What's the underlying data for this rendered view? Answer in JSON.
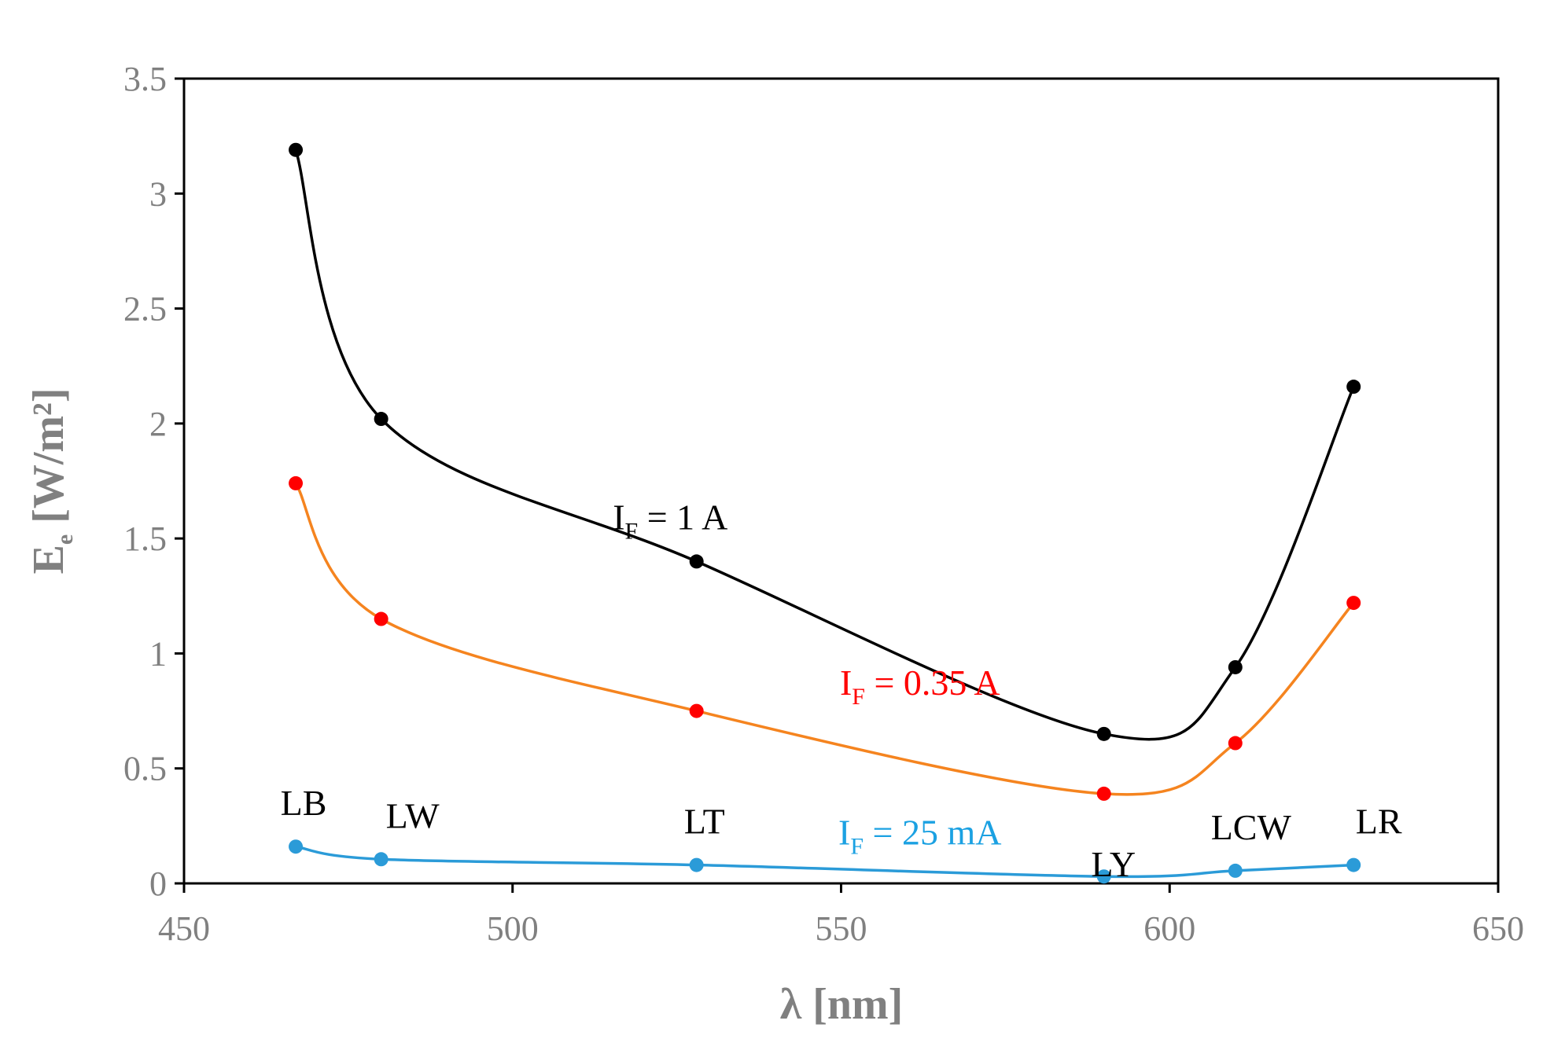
{
  "chart_data": {
    "type": "scatter",
    "title": "",
    "xlabel": "λ [nm]",
    "ylabel_main": "E",
    "ylabel_sub": "e",
    "ylabel_rest": " [W/m²]",
    "xlim": [
      450,
      650
    ],
    "ylim": [
      0,
      3.5
    ],
    "x_ticks": [
      450,
      500,
      550,
      600,
      650
    ],
    "y_ticks": [
      0,
      0.5,
      1,
      1.5,
      2,
      2.5,
      3,
      3.5
    ],
    "x_tick_labels": [
      "450",
      "500",
      "550",
      "600",
      "650"
    ],
    "y_tick_labels": [
      "0",
      "0.5",
      "1",
      "1.5",
      "2",
      "2.5",
      "3",
      "3.5"
    ],
    "grid": false,
    "x": [
      467,
      480,
      528,
      590,
      610,
      628
    ],
    "point_labels": [
      {
        "text": "LB",
        "x": 467
      },
      {
        "text": "LW",
        "x": 480
      },
      {
        "text": "LT",
        "x": 528
      },
      {
        "text": "LY",
        "x": 590
      },
      {
        "text": "LCW",
        "x": 610
      },
      {
        "text": "LR",
        "x": 628
      }
    ],
    "series": [
      {
        "name": "IF = 1 A",
        "label_main": "I",
        "label_sub": "F",
        "label_rest": " = 1 A",
        "label_anchor_x": 524,
        "label_anchor_y": 1.54,
        "label_color": "#000000",
        "marker_color": "#000000",
        "line_color": "#000000",
        "values": [
          3.19,
          2.02,
          1.4,
          0.65,
          0.94,
          2.16
        ]
      },
      {
        "name": "IF = 0.35 A",
        "label_main": "I",
        "label_sub": "F",
        "label_rest": " = 0.35 A",
        "label_anchor_x": 562,
        "label_anchor_y": 0.82,
        "label_color": "#ff0000",
        "marker_color": "#ff0000",
        "line_color": "#f5841f",
        "values": [
          1.74,
          1.15,
          0.75,
          0.39,
          0.61,
          1.22
        ]
      },
      {
        "name": "IF = 25 mA",
        "label_main": "I",
        "label_sub": "F",
        "label_rest": " = 25 mA",
        "label_anchor_x": 562,
        "label_anchor_y": 0.17,
        "label_color": "#1ba1e2",
        "marker_color": "#2b9bd8",
        "line_color": "#2b9bd8",
        "values": [
          0.16,
          0.105,
          0.08,
          0.03,
          0.055,
          0.08
        ]
      }
    ]
  }
}
